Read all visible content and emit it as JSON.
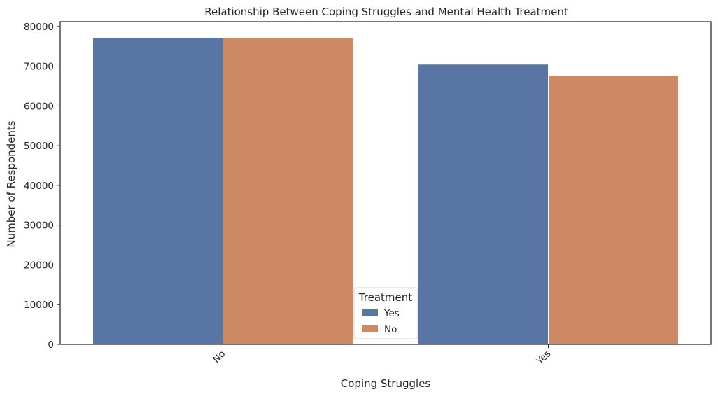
{
  "chart_data": {
    "type": "bar",
    "title": "Relationship Between Coping Struggles and Mental Health Treatment",
    "xlabel": "Coping Struggles",
    "ylabel": "Number of Respondents",
    "categories": [
      "No",
      "Yes"
    ],
    "series": [
      {
        "name": "Yes",
        "values": [
          77200,
          70500
        ],
        "color": "#5875a4"
      },
      {
        "name": "No",
        "values": [
          77200,
          67700
        ],
        "color": "#cc8963"
      }
    ],
    "ylim": [
      0,
      81200
    ],
    "yticks": [
      0,
      10000,
      20000,
      30000,
      40000,
      50000,
      60000,
      70000,
      80000
    ],
    "ytick_labels": [
      "0",
      "10000",
      "20000",
      "30000",
      "40000",
      "50000",
      "60000",
      "70000",
      "80000"
    ],
    "xtick_rotation_deg": 45,
    "grid": false,
    "legend": {
      "title": "Treatment",
      "placement": "lower-center"
    }
  }
}
